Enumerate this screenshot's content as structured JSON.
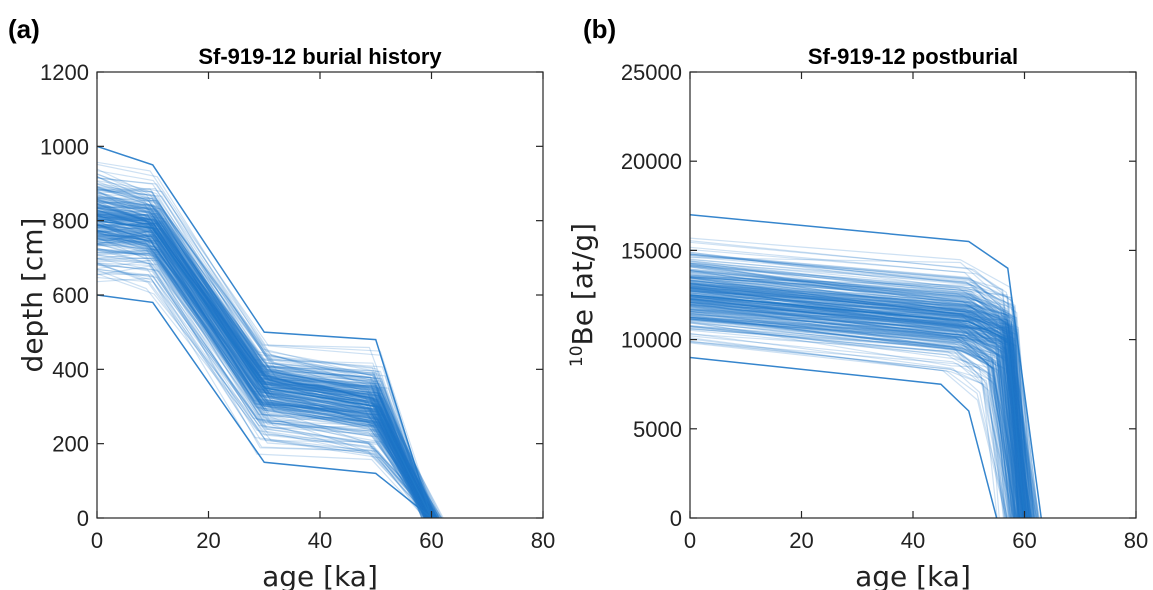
{
  "panels": [
    {
      "letter": "(a)",
      "chart_data": {
        "type": "line",
        "title": "Sf-919-12 burial history",
        "xlabel": "age [ka]",
        "ylabel": "depth [cm]",
        "xlim": [
          0,
          80
        ],
        "ylim": [
          0,
          1200
        ],
        "xticks": [
          0,
          20,
          40,
          60,
          80
        ],
        "yticks": [
          0,
          200,
          400,
          600,
          800,
          1000,
          1200
        ],
        "grid": false,
        "ensemble_count": 300,
        "series_color": "#1f78c8",
        "series": [
          {
            "name": "",
            "x": [
              0,
              10,
              30,
              50,
              60
            ],
            "y": [
              1000,
              950,
              500,
              480,
              0
            ]
          },
          {
            "name": "",
            "x": [
              0,
              10,
              30,
              50,
              60
            ],
            "y": [
              800,
              780,
              350,
              300,
              0
            ]
          },
          {
            "name": "",
            "x": [
              0,
              10,
              30,
              50,
              60
            ],
            "y": [
              600,
              580,
              150,
              120,
              0
            ]
          }
        ]
      }
    },
    {
      "letter": "(b)",
      "chart_data": {
        "type": "line",
        "title": "Sf-919-12 postburial",
        "xlabel": "age [ka]",
        "ylabel_sup": "10",
        "ylabel_main": "Be [at/g]",
        "xlim": [
          0,
          80
        ],
        "ylim": [
          0,
          25000
        ],
        "xticks": [
          0,
          20,
          40,
          60,
          80
        ],
        "yticks": [
          0,
          5000,
          10000,
          15000,
          20000,
          25000
        ],
        "grid": false,
        "ensemble_count": 300,
        "series_color": "#1f78c8",
        "series": [
          {
            "name": "",
            "x": [
              0,
              50,
              57,
              63
            ],
            "y": [
              17000,
              15500,
              14000,
              0
            ]
          },
          {
            "name": "",
            "x": [
              0,
              50,
              57,
              60
            ],
            "y": [
              12500,
              11000,
              10000,
              0
            ]
          },
          {
            "name": "",
            "x": [
              0,
              45,
              50,
              55
            ],
            "y": [
              9000,
              7500,
              6000,
              0
            ]
          }
        ]
      }
    }
  ]
}
